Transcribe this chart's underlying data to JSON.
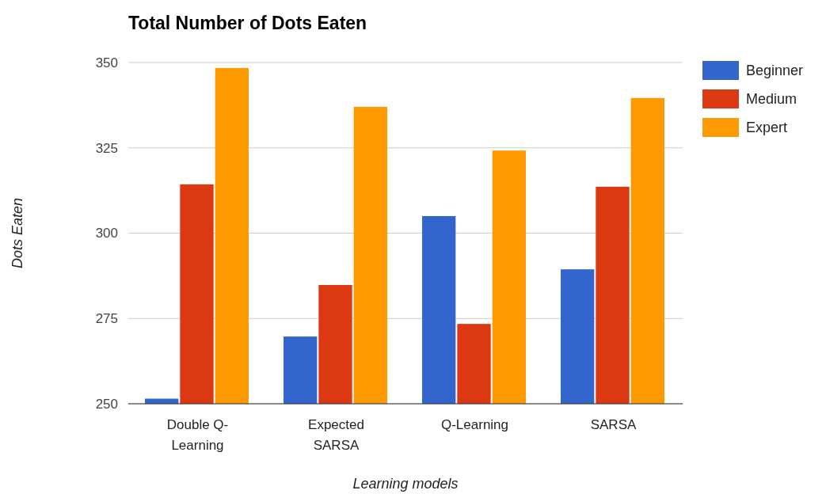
{
  "chart_data": {
    "type": "bar",
    "title": "Total Number of Dots Eaten",
    "xlabel": "Learning models",
    "ylabel": "Dots Eaten",
    "categories": [
      "Double Q-Learning",
      "Expected SARSA",
      "Q-Learning",
      "SARSA"
    ],
    "series": [
      {
        "name": "Beginner",
        "color": "#3366cc",
        "values": [
          251.5,
          269.7,
          305,
          289.4
        ]
      },
      {
        "name": "Medium",
        "color": "#dc3912",
        "values": [
          314.3,
          284.8,
          273.4,
          313.6
        ]
      },
      {
        "name": "Expert",
        "color": "#ff9900",
        "values": [
          348.4,
          337,
          324.2,
          339.6
        ]
      }
    ],
    "ylim": [
      250,
      350
    ],
    "yticks": [
      250,
      275,
      300,
      325,
      350
    ],
    "grid": "y",
    "legend": "top right"
  }
}
